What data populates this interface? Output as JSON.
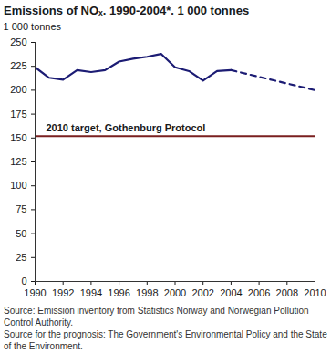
{
  "chart_data": {
    "type": "line",
    "title": "Emissions of NOₓ. 1990-2004*. 1 000 tonnes",
    "y_label": "1 000 tonnes",
    "xlim": [
      1990,
      2010
    ],
    "xticks": [
      1990,
      1992,
      1994,
      1996,
      1998,
      2000,
      2002,
      2004,
      2006,
      2008,
      2010
    ],
    "ylim": [
      0,
      250
    ],
    "yticks": [
      0,
      25,
      50,
      75,
      100,
      125,
      150,
      175,
      200,
      225,
      250
    ],
    "grid": false,
    "series": [
      {
        "x": [
          1990,
          1991,
          1992,
          1993,
          1994,
          1995,
          1996,
          1997,
          1998,
          1999,
          2000,
          2001,
          2002,
          2003,
          2004
        ],
        "values": [
          224,
          213,
          211,
          221,
          219,
          221,
          230,
          233,
          235,
          238,
          224,
          220,
          210,
          220,
          221
        ],
        "color": "#1c1c74",
        "line_style": "solid"
      },
      {
        "x": [
          2004,
          2010
        ],
        "values": [
          221,
          200
        ],
        "color": "#1c1c74",
        "line_style": "dashed"
      }
    ],
    "target": {
      "value": 152,
      "label": "2010 target, Gothenburg Protocol",
      "color": "#7a1f1f"
    },
    "source": [
      "Source: Emission inventory from Statistics Norway and Norwegian Pollution Control Authority.",
      "Source for the prognosis: The Government's Environmental Policy and the State of the Environment."
    ]
  }
}
